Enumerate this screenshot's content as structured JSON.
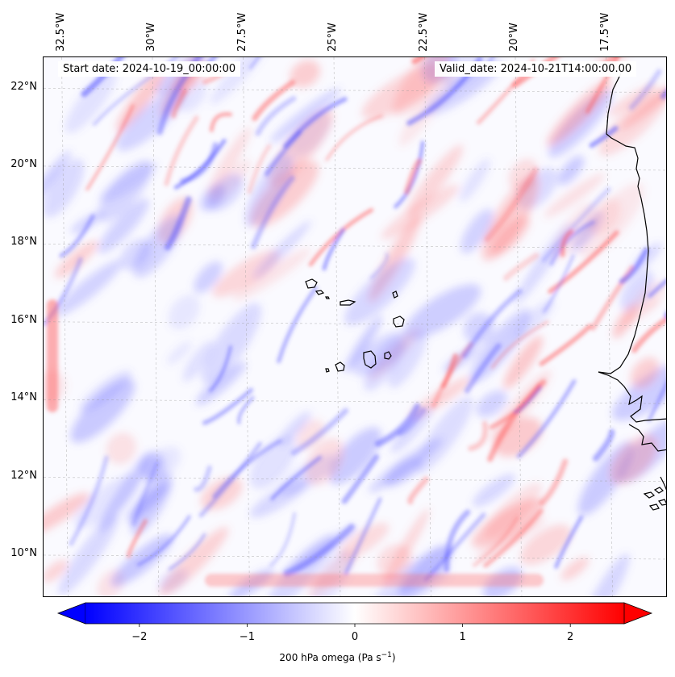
{
  "header": {
    "start_date": "Start date: 2024-10-19_00:00:00",
    "valid_date": "Valid_date: 2024-10-21T14:00:00.00"
  },
  "axes": {
    "lon_labels": [
      "32.5°W",
      "30°W",
      "27.5°W",
      "25°W",
      "22.5°W",
      "20°W",
      "17.5°W"
    ],
    "lat_labels": [
      "22°N",
      "20°N",
      "18°N",
      "16°N",
      "14°N",
      "12°N",
      "10°N"
    ]
  },
  "colorbar": {
    "label": "200 hPa omega (Pa s",
    "label_sup": "−1",
    "label_end": ")",
    "ticks": [
      "−2",
      "−1",
      "0",
      "1",
      "2"
    ],
    "min_color": "#0000ff",
    "mid_color": "#ffffff",
    "max_color": "#ff0000"
  },
  "chart_data": {
    "type": "heatmap",
    "variable": "200 hPa omega",
    "units": "Pa s^-1",
    "colormap": "bwr",
    "vmin": -2.5,
    "vmax": 2.5,
    "extend": "both",
    "lon_range": [
      -33,
      -15.8
    ],
    "lat_range": [
      8.9,
      22.8
    ],
    "lon_ticks": [
      -32.5,
      -30,
      -27.5,
      -25,
      -22.5,
      -20,
      -17.5
    ],
    "lat_ticks": [
      22,
      20,
      18,
      16,
      14,
      12,
      10
    ],
    "colorbar_ticks": [
      -2,
      -1,
      0,
      1,
      2
    ],
    "grid": true
  }
}
